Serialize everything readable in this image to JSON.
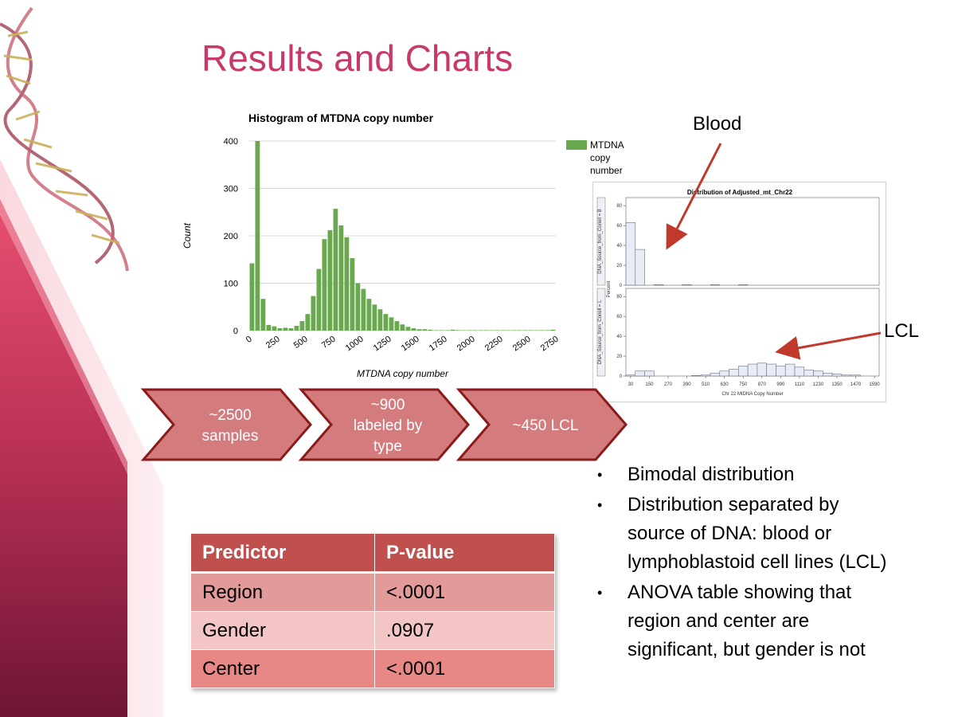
{
  "slide": {
    "title": "Results and Charts"
  },
  "histogram": {
    "legend_label": "MTDNA copy number",
    "chart_data": {
      "type": "bar",
      "title": "Histogram of MTDNA copy number",
      "xlabel": "MTDNA copy number",
      "ylabel": "Count",
      "xlim": [
        0,
        2750
      ],
      "ylim": [
        0,
        400
      ],
      "x_ticks": [
        "0",
        "250",
        "500",
        "750",
        "1000",
        "1250",
        "1500",
        "1750",
        "2000",
        "2250",
        "2500",
        "2750"
      ],
      "y_ticks": [
        "0",
        "100",
        "200",
        "300",
        "400"
      ],
      "bin_width": 50,
      "bin_starts": [
        0,
        50,
        100,
        150,
        200,
        250,
        300,
        350,
        400,
        450,
        500,
        550,
        600,
        650,
        700,
        750,
        800,
        850,
        900,
        950,
        1000,
        1050,
        1100,
        1150,
        1200,
        1250,
        1300,
        1350,
        1400,
        1450,
        1500,
        1550,
        1600,
        1650,
        1700,
        1750,
        1800,
        1850,
        1900,
        1950,
        2000,
        2050,
        2100,
        2150,
        2200,
        2250,
        2300,
        2350,
        2400,
        2450,
        2500,
        2550,
        2600,
        2650,
        2700
      ],
      "values": [
        142,
        400,
        67,
        12,
        9,
        5,
        6,
        5,
        10,
        20,
        35,
        73,
        130,
        193,
        212,
        257,
        222,
        197,
        153,
        100,
        88,
        67,
        55,
        45,
        35,
        28,
        20,
        13,
        8,
        5,
        3,
        3,
        2,
        1,
        1,
        1,
        2,
        1,
        1,
        1,
        1,
        1,
        1,
        1,
        1,
        1,
        1,
        1,
        1,
        1,
        1,
        1,
        1,
        1,
        2
      ],
      "color": "#6aa84f",
      "grid": true,
      "legend": "right"
    }
  },
  "flow": {
    "steps": [
      "~2500 samples",
      "~900 labeled by type",
      "~450 LCL"
    ],
    "step_lines": [
      [
        "~2500",
        "samples"
      ],
      [
        "~900",
        "labeled by",
        "type"
      ],
      [
        "~450 LCL"
      ]
    ]
  },
  "distribution": {
    "blood_label": "Blood",
    "lcl_label": "LCL",
    "chart_data": {
      "type": "bar",
      "title": "Distribution of Adjusted_mt_Chr22",
      "xlabel": "Chr 22 MtDNA Copy Number",
      "ylabel": "Percent",
      "x_ticks": [
        "30",
        "150",
        "270",
        "390",
        "510",
        "630",
        "750",
        "870",
        "990",
        "1110",
        "1230",
        "1350",
        "1470",
        "1590"
      ],
      "y_ticks": [
        "0",
        "20",
        "40",
        "60",
        "80"
      ],
      "ylim": [
        0,
        85
      ],
      "xlim": [
        0,
        1620
      ],
      "bin_width": 60,
      "panels": [
        {
          "name": "DNA_Source_from_Coriell = B",
          "bin_starts": [
            0,
            60,
            180,
            360,
            540,
            720
          ],
          "values": [
            63,
            36,
            0.5,
            0.5,
            0.5,
            0.5
          ]
        },
        {
          "name": "DNA_Source_from_Coriell = L",
          "bin_starts": [
            0,
            60,
            120,
            420,
            480,
            540,
            600,
            660,
            720,
            780,
            840,
            900,
            960,
            1020,
            1080,
            1140,
            1200,
            1260,
            1320,
            1380,
            1440
          ],
          "values": [
            1,
            5,
            5,
            0.5,
            1,
            3,
            5,
            7,
            10,
            12,
            13,
            12,
            10,
            12,
            9,
            6,
            5,
            3,
            2,
            1,
            1
          ]
        }
      ]
    }
  },
  "table": {
    "headers": [
      "Predictor",
      "P-value"
    ],
    "rows": [
      [
        "Region",
        "<.0001"
      ],
      [
        "Gender",
        ".0907"
      ],
      [
        "Center",
        "<.0001"
      ]
    ]
  },
  "bullets": [
    "Bimodal distribution",
    "Distribution separated by source of DNA: blood or lymphoblastoid cell lines (LCL)",
    "ANOVA table showing that region and center are significant, but gender is not"
  ],
  "bullet_lines": [
    [
      "Bimodal distribution"
    ],
    [
      "Distribution separated by",
      "source of DNA: blood or",
      "lymphoblastoid cell lines (LCL)"
    ],
    [
      "ANOVA table showing that",
      "region and center are",
      "significant, but gender is not"
    ]
  ],
  "colors": {
    "title": "#c8386a",
    "histogram_bar": "#6aa84f",
    "chevron_fill": "#d47b7e",
    "chevron_border": "#8b1a1a",
    "table_header": "#c0504d",
    "arrow": "#c0392b",
    "sidebar": "#a52a4a"
  }
}
